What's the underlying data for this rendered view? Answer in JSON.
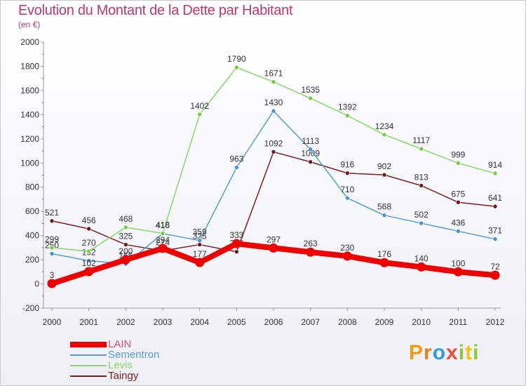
{
  "title": "Evolution du Montant de la Dette par Habitant",
  "subtitle": "(en €)",
  "brand": {
    "letters": [
      "P",
      "r",
      "o",
      "x",
      "i",
      "t",
      "i"
    ],
    "colors": [
      "#f39c12",
      "#e67e22",
      "#3498db",
      "#e74c3c",
      "#8cc63f",
      "#f1c40f",
      "#8cc63f"
    ]
  },
  "chart_data": {
    "type": "line",
    "x": [
      "2000",
      "2001",
      "2002",
      "2003",
      "2004",
      "2005",
      "2006",
      "2007",
      "2008",
      "2009",
      "2010",
      "2011",
      "2012"
    ],
    "ylim": [
      -200,
      2000
    ],
    "yticks": [
      "-200",
      "0",
      "200",
      "400",
      "600",
      "800",
      "1000",
      "1200",
      "1400",
      "1600",
      "1800",
      "2000"
    ],
    "grid": false,
    "legend": "bottom-left",
    "series": [
      {
        "name": "Taingy",
        "color": "#7b1f24",
        "point": "#6a1b1f",
        "width": 1.5,
        "values": [
          521,
          456,
          325,
          274,
          325,
          266,
          1092,
          1009,
          916,
          902,
          813,
          675,
          641
        ],
        "labels": [
          "521",
          "456",
          "325",
          "274",
          "325",
          "266",
          "1092",
          "1009",
          "916",
          "902",
          "813",
          "675",
          "641"
        ]
      },
      {
        "name": "Sementron",
        "color": "#5b9bd5",
        "point": "#4a8fd0",
        "width": 1.5,
        "values": [
          250,
          192,
          165,
          416,
          359,
          963,
          1430,
          1113,
          710,
          568,
          502,
          436,
          371
        ],
        "labels": [
          "250",
          "192",
          "165",
          "416",
          "359",
          "963",
          "1430",
          "1113",
          "710",
          "568",
          "502",
          "436",
          "371"
        ]
      },
      {
        "name": "Levis",
        "color": "#8fd36b",
        "point": "#7ac943",
        "width": 1.5,
        "values": [
          299,
          270,
          468,
          418,
          1402,
          1790,
          1671,
          1535,
          1392,
          1234,
          1117,
          999,
          914
        ],
        "labels": [
          "299",
          "270",
          "468",
          "418",
          "1402",
          "1790",
          "1671",
          "1535",
          "1392",
          "1234",
          "1117",
          "999",
          "914"
        ]
      },
      {
        "name": "LAIN",
        "color": "#ee0000",
        "point": "#ee0000",
        "width": 8,
        "values": [
          3,
          102,
          200,
          294,
          177,
          333,
          297,
          263,
          230,
          176,
          140,
          100,
          72
        ],
        "labels": [
          "3",
          "102",
          "200",
          "294",
          "177",
          "333",
          "297",
          "263",
          "230",
          "176",
          "140",
          "100",
          "72"
        ]
      }
    ],
    "legend_order": [
      "LAIN",
      "Sementron",
      "Levis",
      "Taingy"
    ]
  }
}
